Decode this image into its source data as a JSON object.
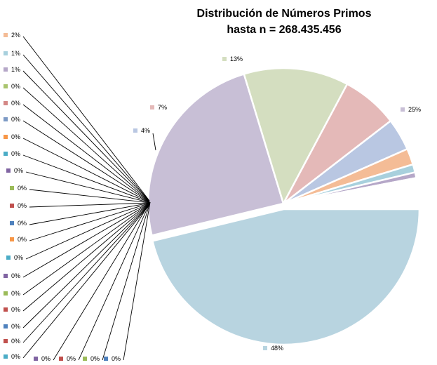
{
  "chart_data": {
    "type": "pie",
    "title": "Distribución de Números Primos",
    "subtitle": "hasta n = 268.435.456",
    "slices": [
      {
        "label": "48%",
        "value": 48,
        "color": "#b8d4e0"
      },
      {
        "label": "25%",
        "value": 25,
        "color": "#c8bfd6"
      },
      {
        "label": "13%",
        "value": 13,
        "color": "#d4dec0"
      },
      {
        "label": "7%",
        "value": 7,
        "color": "#e4b9b8"
      },
      {
        "label": "4%",
        "value": 4,
        "color": "#b9c7e2"
      },
      {
        "label": "2%",
        "value": 2,
        "color": "#f4bc96"
      },
      {
        "label": "1%",
        "value": 1,
        "color": "#a8d0dd"
      },
      {
        "label": "1%",
        "value": 0.7,
        "color": "#b5a7c8"
      },
      {
        "label": "0%",
        "value": 0.15,
        "color": "#a9c46e"
      },
      {
        "label": "0%",
        "value": 0.15,
        "color": "#d48886"
      },
      {
        "label": "0%",
        "value": 0.15,
        "color": "#7d9ac5"
      },
      {
        "label": "0%",
        "value": 0.15,
        "color": "#f79646"
      },
      {
        "label": "0%",
        "value": 0.15,
        "color": "#4bacc6"
      },
      {
        "label": "0%",
        "value": 0.15,
        "color": "#8064a2"
      },
      {
        "label": "0%",
        "value": 0.15,
        "color": "#9bbb59"
      },
      {
        "label": "0%",
        "value": 0.15,
        "color": "#c0504d"
      },
      {
        "label": "0%",
        "value": 0.15,
        "color": "#4f81bd"
      },
      {
        "label": "0%",
        "value": 0.15,
        "color": "#f79646"
      },
      {
        "label": "0%",
        "value": 0.15,
        "color": "#4bacc6"
      },
      {
        "label": "0%",
        "value": 0.15,
        "color": "#8064a2"
      },
      {
        "label": "0%",
        "value": 0.15,
        "color": "#9bbb59"
      },
      {
        "label": "0%",
        "value": 0.15,
        "color": "#c0504d"
      },
      {
        "label": "0%",
        "value": 0.15,
        "color": "#4f81bd"
      },
      {
        "label": "0%",
        "value": 0.15,
        "color": "#c0504d"
      },
      {
        "label": "0%",
        "value": 0.15,
        "color": "#4bacc6"
      },
      {
        "label": "0%",
        "value": 0.15,
        "color": "#8064a2"
      },
      {
        "label": "0%",
        "value": 0.15,
        "color": "#c0504d"
      },
      {
        "label": "0%",
        "value": 0.15,
        "color": "#9bbb59"
      },
      {
        "label": "0%",
        "value": 0.15,
        "color": "#4f81bd"
      }
    ]
  }
}
